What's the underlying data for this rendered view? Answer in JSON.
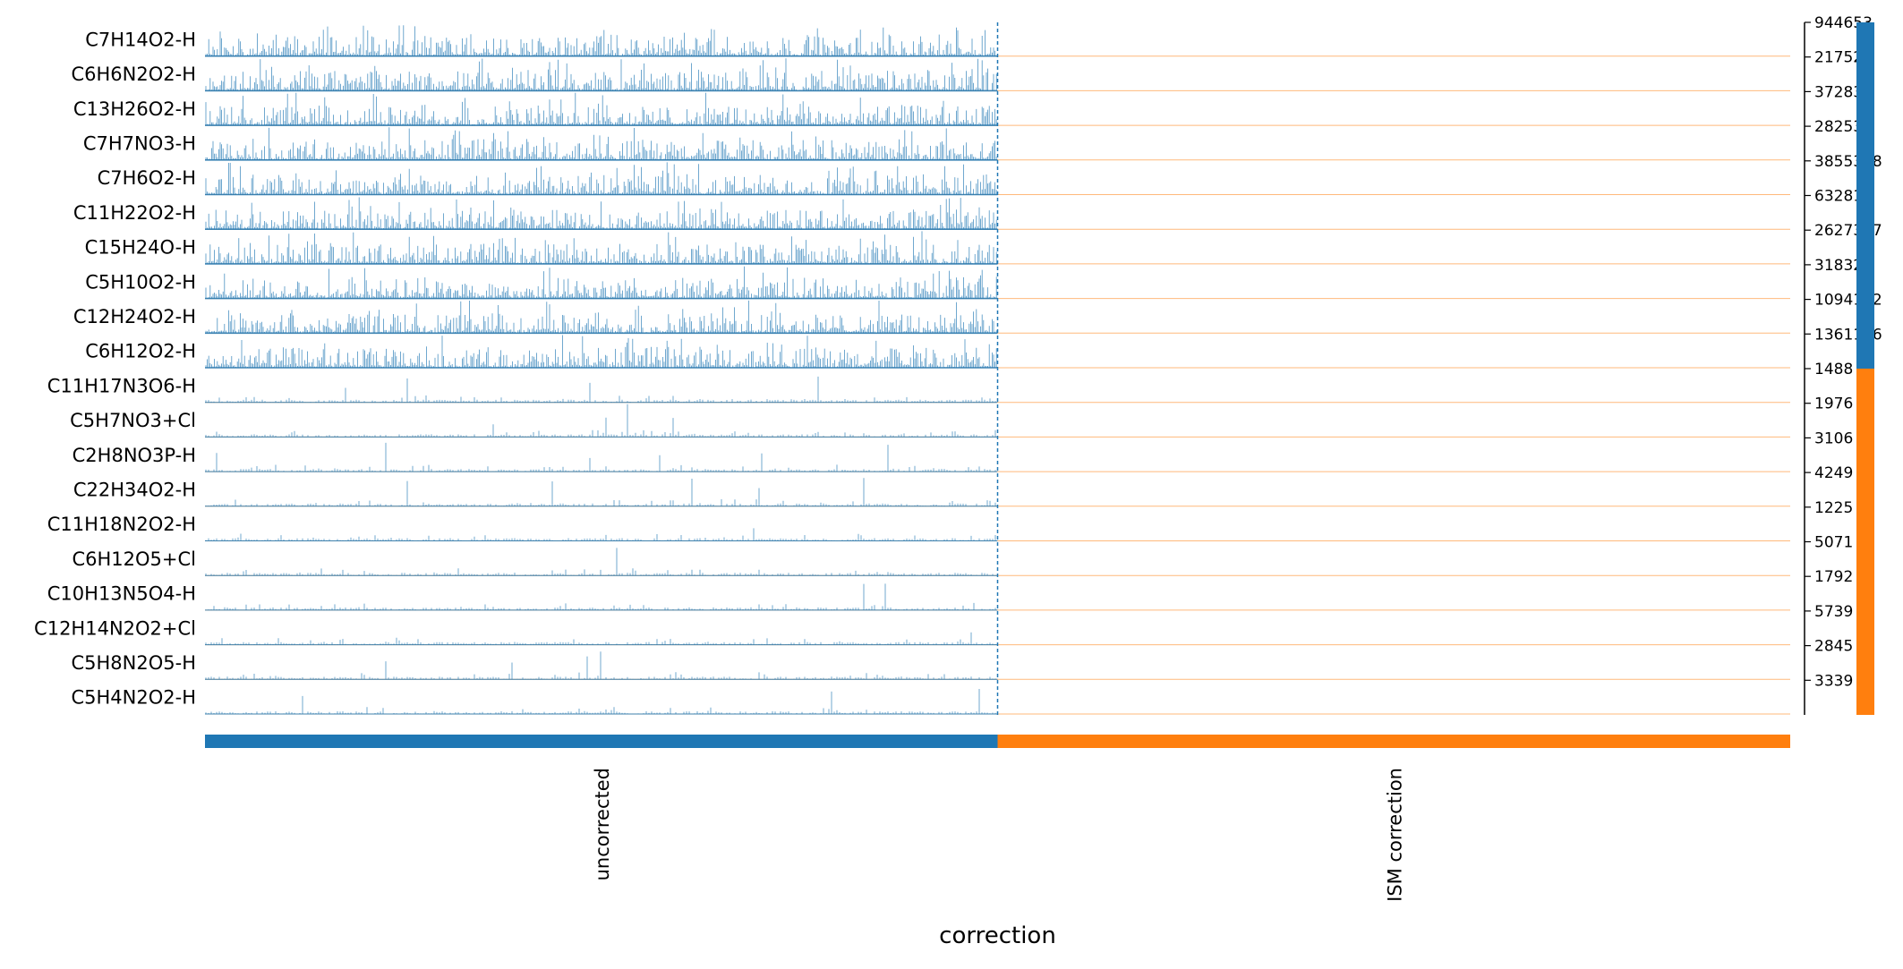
{
  "chart_data": {
    "type": "track-heatmap",
    "xlabel": "correction",
    "groups": [
      {
        "label": "uncorrected",
        "color": "#1f77b4"
      },
      {
        "label": "ISM correction",
        "color": "#ff7f0e"
      }
    ],
    "row_groups": [
      {
        "label": "",
        "color": "#1f77b4",
        "count": 10
      },
      {
        "label": "",
        "color": "#ff7f0e",
        "count": 10
      }
    ],
    "rows": [
      {
        "name": "C7H14O2-H",
        "max_label": "944653"
      },
      {
        "name": "C6H6N2O2-H",
        "max_label": "217524"
      },
      {
        "name": "C13H26O2-H",
        "max_label": "372837"
      },
      {
        "name": "C7H7NO3-H",
        "max_label": "282533"
      },
      {
        "name": "C7H6O2-H",
        "max_label": "3855388"
      },
      {
        "name": "C11H22O2-H",
        "max_label": "632810"
      },
      {
        "name": "C15H24O-H",
        "max_label": "2627337"
      },
      {
        "name": "C5H10O2-H",
        "max_label": "318320"
      },
      {
        "name": "C12H24O2-H",
        "max_label": "1094122"
      },
      {
        "name": "C6H12O2-H",
        "max_label": "1361116"
      },
      {
        "name": "C11H17N3O6-H",
        "max_label": "1488"
      },
      {
        "name": "C5H7NO3+Cl",
        "max_label": "1976"
      },
      {
        "name": "C2H8NO3P-H",
        "max_label": "3106"
      },
      {
        "name": "C22H34O2-H",
        "max_label": "4249"
      },
      {
        "name": "C11H18N2O2-H",
        "max_label": "1225"
      },
      {
        "name": "C6H12O5+Cl",
        "max_label": "5071"
      },
      {
        "name": "C10H13N5O4-H",
        "max_label": "1792"
      },
      {
        "name": "C12H14N2O2+Cl",
        "max_label": "5739"
      },
      {
        "name": "C5H8N2O5-H",
        "max_label": "2845"
      },
      {
        "name": "C5H4N2O2-H",
        "max_label": "3339"
      }
    ],
    "tick_labels": [
      "944653",
      "217524",
      "372837",
      "282533",
      "3855388",
      "632810",
      "2627337",
      "318320",
      "1094122",
      "1361116",
      "1488",
      "1976",
      "3106",
      "4249",
      "1225",
      "5071",
      "1792",
      "5739",
      "2845",
      "3339"
    ],
    "grid": false,
    "legend": "none"
  }
}
